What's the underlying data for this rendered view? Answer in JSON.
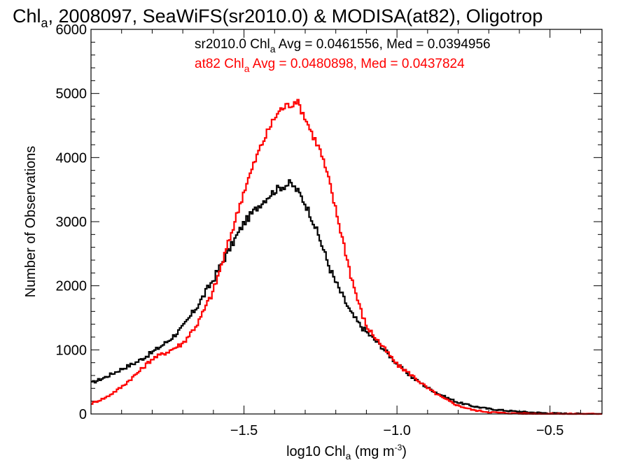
{
  "chart_data": {
    "type": "line",
    "title": {
      "prefix": "Chl",
      "sub": "a",
      "rest": ", 2008097, SeaWiFS(sr2010.0) & MODISA(at82), Oligotrop"
    },
    "xlabel": {
      "prefix": "log10 Chl",
      "sub": "a",
      "unit": " (mg m",
      "sup": "-3",
      "close": ")"
    },
    "ylabel": "Number of Observations",
    "xlim": [
      -2.0,
      -0.33
    ],
    "ylim": [
      0,
      6000
    ],
    "x_ticks": [
      {
        "value": -1.5,
        "label": "−1.5"
      },
      {
        "value": -1.0,
        "label": "−1.0"
      },
      {
        "value": -0.5,
        "label": "−0.5"
      }
    ],
    "y_ticks": [
      {
        "value": 0,
        "label": "0"
      },
      {
        "value": 1000,
        "label": "1000"
      },
      {
        "value": 2000,
        "label": "2000"
      },
      {
        "value": 3000,
        "label": "3000"
      },
      {
        "value": 4000,
        "label": "4000"
      },
      {
        "value": 5000,
        "label": "5000"
      },
      {
        "value": 6000,
        "label": "6000"
      }
    ],
    "grid": false,
    "legend_position": "top",
    "annotations": [
      {
        "series": "sr2010.0",
        "prefix": "sr2010.0 Chl",
        "sub": "a",
        "rest": " Avg = 0.0461556, Med = 0.0394956",
        "color": "#000000"
      },
      {
        "series": "at82",
        "prefix": "at82 Chl",
        "sub": "a",
        "rest": " Avg = 0.0480898, Med = 0.0437824",
        "color": "#ff0000"
      }
    ],
    "series": [
      {
        "name": "sr2010.0",
        "color": "#000000",
        "style": "step",
        "x": [
          -2.0,
          -1.95,
          -1.9,
          -1.85,
          -1.8,
          -1.75,
          -1.7,
          -1.65,
          -1.6,
          -1.55,
          -1.5,
          -1.45,
          -1.42,
          -1.4,
          -1.38,
          -1.36,
          -1.35,
          -1.34,
          -1.32,
          -1.3,
          -1.28,
          -1.25,
          -1.22,
          -1.2,
          -1.18,
          -1.15,
          -1.12,
          -1.1,
          -1.05,
          -1.0,
          -0.95,
          -0.9,
          -0.85,
          -0.8,
          -0.75,
          -0.7,
          -0.65,
          -0.6,
          -0.55,
          -0.5,
          -0.45,
          -0.4,
          -0.33
        ],
        "y": [
          480,
          580,
          700,
          810,
          960,
          1130,
          1350,
          1700,
          2100,
          2550,
          2980,
          3260,
          3400,
          3480,
          3540,
          3570,
          3600,
          3560,
          3450,
          3280,
          3080,
          2700,
          2280,
          2050,
          1860,
          1570,
          1380,
          1280,
          1050,
          780,
          570,
          410,
          280,
          180,
          120,
          80,
          55,
          35,
          22,
          12,
          6,
          3,
          0
        ]
      },
      {
        "name": "at82",
        "color": "#ff0000",
        "style": "step",
        "x": [
          -2.0,
          -1.95,
          -1.9,
          -1.85,
          -1.8,
          -1.75,
          -1.7,
          -1.65,
          -1.6,
          -1.55,
          -1.5,
          -1.45,
          -1.42,
          -1.4,
          -1.38,
          -1.36,
          -1.34,
          -1.33,
          -1.32,
          -1.3,
          -1.28,
          -1.25,
          -1.22,
          -1.2,
          -1.18,
          -1.15,
          -1.12,
          -1.1,
          -1.05,
          -1.0,
          -0.95,
          -0.9,
          -0.85,
          -0.8,
          -0.75,
          -0.7,
          -0.65,
          -0.6,
          -0.55,
          -0.5,
          -0.45,
          -0.4,
          -0.33
        ],
        "y": [
          160,
          260,
          420,
          630,
          860,
          970,
          1100,
          1420,
          1920,
          2680,
          3480,
          4120,
          4430,
          4620,
          4750,
          4810,
          4840,
          4900,
          4820,
          4620,
          4400,
          4100,
          3600,
          3180,
          2780,
          2150,
          1640,
          1370,
          1070,
          770,
          600,
          400,
          250,
          130,
          60,
          30,
          15,
          8,
          4,
          2,
          1,
          0,
          0
        ]
      }
    ]
  }
}
